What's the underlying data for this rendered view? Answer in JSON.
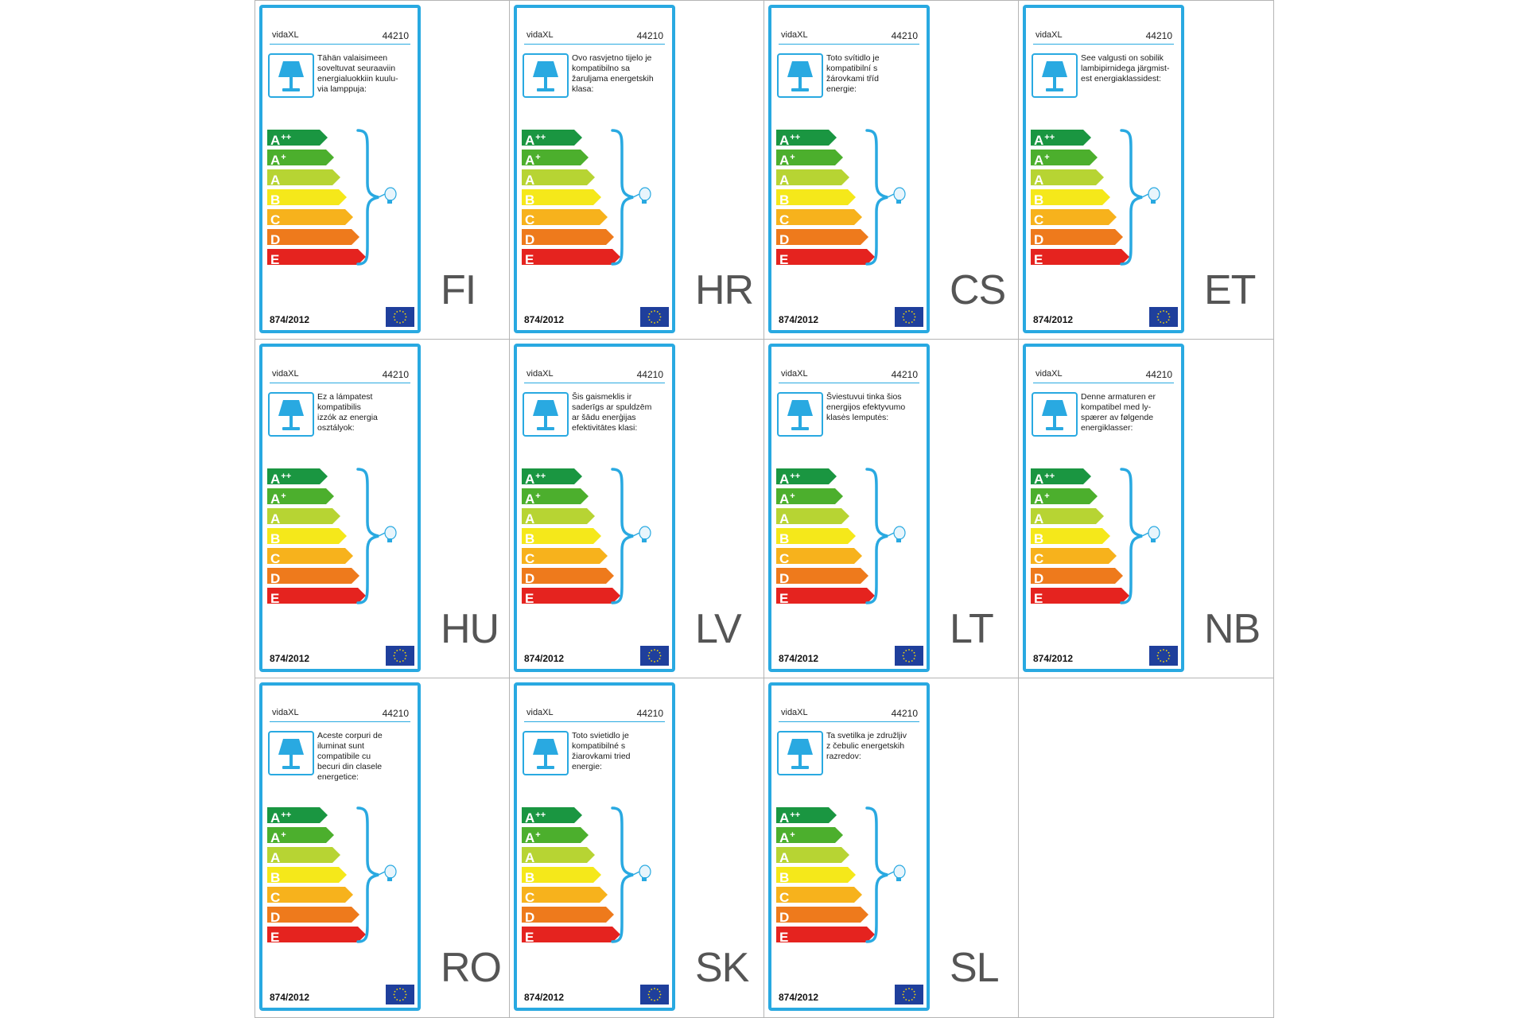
{
  "brand": "vidaXL",
  "product_code": "44210",
  "regulation": "874/2012",
  "colors": {
    "frame": "#29a9e1",
    "class_colors": [
      "#1a9641",
      "#4caf2d",
      "#b7d433",
      "#f5e81a",
      "#f7b21c",
      "#ee7a1c",
      "#e5231f"
    ]
  },
  "energy_classes": [
    {
      "letter": "A",
      "sup": "++"
    },
    {
      "letter": "A",
      "sup": "+"
    },
    {
      "letter": "A",
      "sup": ""
    },
    {
      "letter": "B",
      "sup": ""
    },
    {
      "letter": "C",
      "sup": ""
    },
    {
      "letter": "D",
      "sup": ""
    },
    {
      "letter": "E",
      "sup": ""
    }
  ],
  "icons": {
    "lamp": "table-lamp-icon",
    "bulb": "light-bulb-icon",
    "eu": "eu-flag-icon"
  },
  "labels": [
    {
      "lang": "FI",
      "text": "Tähän valaisimeen\nsoveltuvat seuraaviin\nenergialuokkiin kuulu-\nvia lamppuja:"
    },
    {
      "lang": "HR",
      "text": "Ovo rasvjetno tijelo je\nkompatibilno sa\nžaruljama energetskih\nklasa:"
    },
    {
      "lang": "CS",
      "text": "Toto svítidlo je\nkompatibilní s\nžárovkami tříd\nenergie:"
    },
    {
      "lang": "ET",
      "text": "See valgusti on sobilik\nlambipirnidega järgmist-\nest energiaklassidest:"
    },
    {
      "lang": "HU",
      "text": "Ez a lámpatest\nkompatibilis\nizzók az energia\nosztályok:"
    },
    {
      "lang": "LV",
      "text": "Šis gaismeklis ir\nsaderīgs ar spuldzēm\nar šādu enerģijas\nefektivitātes klasi:"
    },
    {
      "lang": "LT",
      "text": "Šviestuvui tinka šios\nenergijos efektyvumo\nklasės lemputės:"
    },
    {
      "lang": "NB",
      "text": "Denne armaturen er\nkompatibel med ly-\nspærer av følgende\nenergiklasser:"
    },
    {
      "lang": "RO",
      "text": "Aceste corpuri de\niluminat sunt\ncompatibile cu\nbecuri din clasele\nenergetice:"
    },
    {
      "lang": "SK",
      "text": "Toto svietidlo je\nkompatibilné s\nžiarovkami tried\nenergie:"
    },
    {
      "lang": "SL",
      "text": "Ta svetilka je združljiv\nz čebulic energetskih\nrazredov:"
    }
  ]
}
